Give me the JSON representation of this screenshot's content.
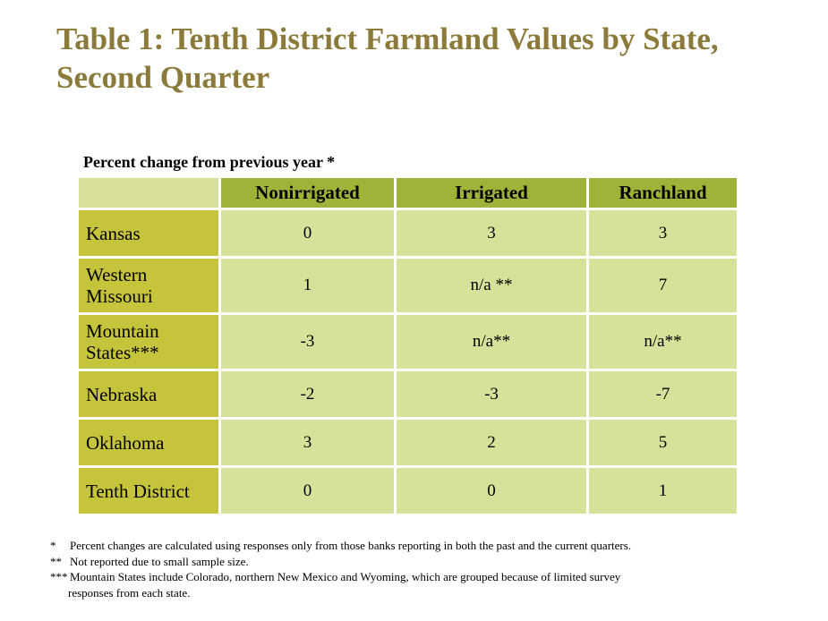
{
  "title": "Table 1: Tenth District Farmland Values by State, Second Quarter",
  "subtitle": "Percent change from previous year *",
  "table": {
    "columns": [
      "Nonirrigated",
      "Irrigated",
      "Ranchland"
    ],
    "rows": [
      {
        "label": "Kansas",
        "values": [
          "0",
          "3",
          "3"
        ]
      },
      {
        "label": "Western Missouri",
        "values": [
          "1",
          "n/a **",
          "7"
        ]
      },
      {
        "label": "Mountain States***",
        "values": [
          "-3",
          "n/a**",
          "n/a**"
        ]
      },
      {
        "label": "Nebraska",
        "values": [
          "-2",
          "-3",
          "-7"
        ]
      },
      {
        "label": "Oklahoma",
        "values": [
          "3",
          "2",
          "5"
        ]
      },
      {
        "label": "Tenth District",
        "values": [
          "0",
          "0",
          "1"
        ]
      }
    ]
  },
  "footnotes": [
    {
      "mark": "*",
      "text": "Percent changes are calculated using responses only from those banks reporting in both the past and the current quarters."
    },
    {
      "mark": "**",
      "text": "Not reported due to small sample size."
    },
    {
      "mark": "***",
      "text": "Mountain States include Colorado, northern New Mexico and Wyoming, which are grouped because of limited survey"
    },
    {
      "mark": "",
      "text": "responses from each state."
    }
  ],
  "colors": {
    "title": "#8c7a3a",
    "header_fill": "#9fb339",
    "row_label_fill": "#c6c43a",
    "cell_fill": "#d6e19a"
  }
}
